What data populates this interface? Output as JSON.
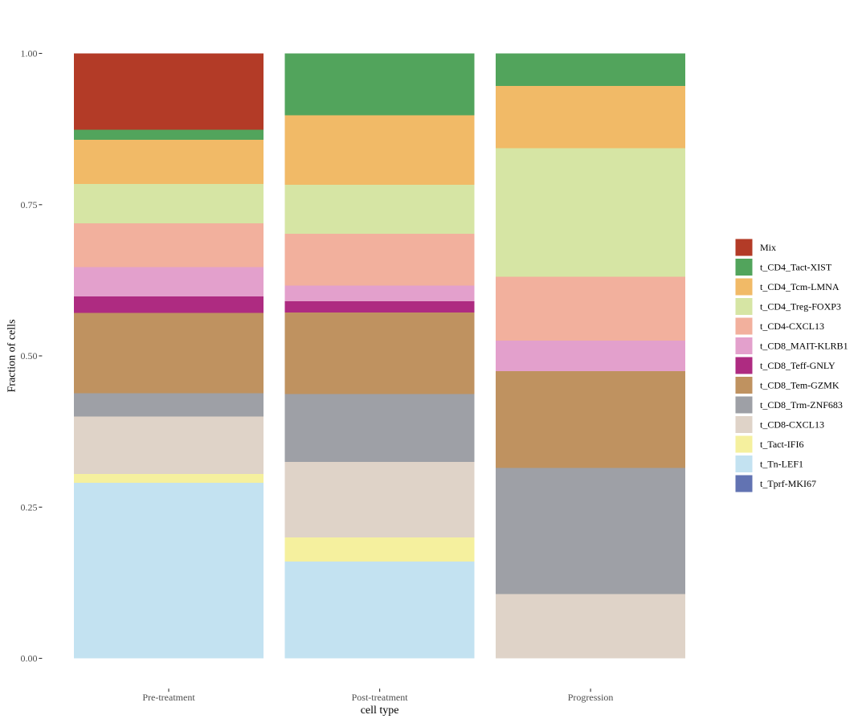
{
  "chart_data": {
    "type": "bar",
    "stacked": true,
    "orientation": "vertical",
    "title": "",
    "xlabel": "cell type",
    "ylabel": "Fraction of cells",
    "categories": [
      "Pre-treatment",
      "Post-treatment",
      "Progression"
    ],
    "y_ticks": [
      {
        "value": 0.0,
        "label": "0.00"
      },
      {
        "value": 0.25,
        "label": "0.25"
      },
      {
        "value": 0.5,
        "label": "0.50"
      },
      {
        "value": 0.75,
        "label": "0.75"
      },
      {
        "value": 1.0,
        "label": "1.00"
      }
    ],
    "ylim": [
      0,
      1
    ],
    "grid": false,
    "panel_background": "none",
    "legend_position": "right",
    "bar_width_ratio": 0.9,
    "series": [
      {
        "name": "Mix",
        "color": "#b33b27",
        "values": [
          0.126,
          0.0,
          0.0
        ]
      },
      {
        "name": "t_CD4_Tact-XIST",
        "color": "#52a45c",
        "values": [
          0.017,
          0.102,
          0.054
        ]
      },
      {
        "name": "t_CD4_Tcm-LMNA",
        "color": "#f1ba67",
        "values": [
          0.073,
          0.115,
          0.103
        ]
      },
      {
        "name": "t_CD4_Treg-FOXP3",
        "color": "#d6e5a4",
        "values": [
          0.065,
          0.081,
          0.212
        ]
      },
      {
        "name": "t_CD4-CXCL13",
        "color": "#f2b09d",
        "values": [
          0.072,
          0.086,
          0.106
        ]
      },
      {
        "name": "t_CD8_MAIT-KLRB1",
        "color": "#e3a0cc",
        "values": [
          0.049,
          0.026,
          0.05
        ]
      },
      {
        "name": "t_CD8_Teff-GNLY",
        "color": "#ae2b81",
        "values": [
          0.027,
          0.018,
          0.0
        ]
      },
      {
        "name": "t_CD8_Tem-GZMK",
        "color": "#bf9260",
        "values": [
          0.133,
          0.135,
          0.16
        ]
      },
      {
        "name": "t_CD8_Trm-ZNF683",
        "color": "#9ea0a6",
        "values": [
          0.038,
          0.112,
          0.209
        ]
      },
      {
        "name": "t_CD8-CXCL13",
        "color": "#dfd3c8",
        "values": [
          0.095,
          0.125,
          0.106
        ]
      },
      {
        "name": "t_Tact-IFI6",
        "color": "#f5f09e",
        "values": [
          0.015,
          0.04,
          0.0
        ]
      },
      {
        "name": "t_Tn-LEF1",
        "color": "#c3e2f1",
        "values": [
          0.29,
          0.16,
          0.0
        ]
      },
      {
        "name": "t_Tprf-MKI67",
        "color": "#6273b2",
        "values": [
          0.0,
          0.0,
          0.0
        ]
      }
    ],
    "colors": {
      "axis_text": "#4d4d4d",
      "axis_title": "#000000",
      "tick_mark": "#333333",
      "legend_text": "#000000",
      "background": "#ffffff"
    }
  }
}
